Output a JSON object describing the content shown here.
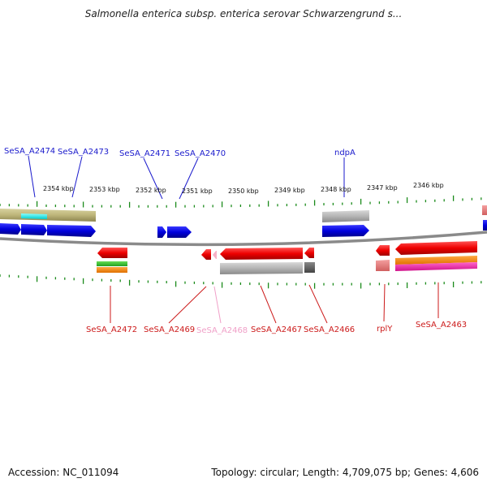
{
  "title": "Salmonella enterica subsp. enterica serovar Schwarzengrund s...",
  "footer": {
    "accession": "Accession: NC_011094",
    "summary": "Topology: circular; Length: 4,709,075 bp; Genes: 4,606"
  },
  "colors": {
    "forward_label": "#1a1acc",
    "reverse_label": "#cc1a1a",
    "pseudo_label": "#f0a0c8",
    "tick": "#1a8a1a",
    "backbone": "#8a8a8a",
    "forward_gene": "#0a0ae0",
    "reverse_gene": "#ee1111"
  },
  "axis": {
    "tick_labels": [
      "2354 kbp",
      "2353 kbp",
      "2352 kbp",
      "2351 kbp",
      "2350 kbp",
      "2349 kbp",
      "2348 kbp",
      "2347 kbp",
      "2346 kbp"
    ]
  },
  "forward_labels": [
    {
      "name": "SeSA_A2474"
    },
    {
      "name": "SeSA_A2473"
    },
    {
      "name": "SeSA_A2471"
    },
    {
      "name": "SeSA_A2470"
    },
    {
      "name": "ndpA"
    }
  ],
  "reverse_labels": [
    {
      "name": "SeSA_A2472",
      "style": "reverse"
    },
    {
      "name": "SeSA_A2469",
      "style": "reverse"
    },
    {
      "name": "SeSA_A2468",
      "style": "pseudo"
    },
    {
      "name": "SeSA_A2467",
      "style": "reverse"
    },
    {
      "name": "SeSA_A2466",
      "style": "reverse"
    },
    {
      "name": "rplY",
      "style": "reverse"
    },
    {
      "name": "SeSA_A2463",
      "style": "reverse"
    }
  ]
}
